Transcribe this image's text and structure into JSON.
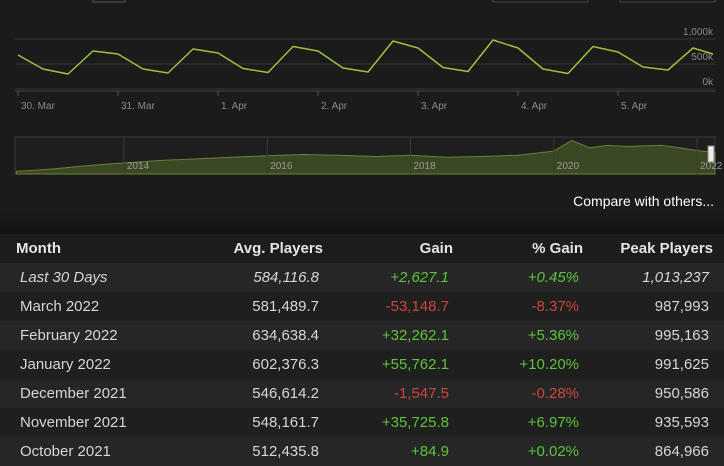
{
  "chart_data": [
    {
      "type": "line",
      "x": [
        0,
        0.25,
        0.5,
        0.75,
        1,
        1.25,
        1.5,
        1.75,
        2,
        2.25,
        2.5,
        2.75,
        3,
        3.25,
        3.5,
        3.75,
        4,
        4.25,
        4.5,
        4.75,
        5,
        5.25,
        5.5,
        5.75,
        6,
        6.25,
        6.5,
        6.75,
        6.95
      ],
      "values": [
        680000,
        400000,
        300000,
        760000,
        700000,
        400000,
        320000,
        800000,
        720000,
        410000,
        330000,
        850000,
        760000,
        420000,
        340000,
        960000,
        820000,
        430000,
        350000,
        980000,
        820000,
        400000,
        310000,
        850000,
        740000,
        440000,
        380000,
        820000,
        700000
      ],
      "color": "#9cc23c",
      "xlim": [
        -0.03,
        6.97
      ],
      "xticks": [
        {
          "value": 0,
          "label": "30. Mar"
        },
        {
          "value": 1,
          "label": "31. Mar"
        },
        {
          "value": 2,
          "label": "1. Apr"
        },
        {
          "value": 3,
          "label": "2. Apr"
        },
        {
          "value": 4,
          "label": "3. Apr"
        },
        {
          "value": 5,
          "label": "4. Apr"
        },
        {
          "value": 6,
          "label": "5. Apr"
        }
      ],
      "ylim": [
        -40000,
        1500000
      ],
      "yticks": [
        {
          "value": 0,
          "label": "0k"
        },
        {
          "value": 500000,
          "label": "500k"
        },
        {
          "value": 1000000,
          "label": "1,000k"
        }
      ],
      "grid": true
    },
    {
      "type": "area",
      "x": [
        2012.5,
        2013,
        2013.5,
        2014,
        2014.5,
        2015,
        2015.5,
        2016,
        2016.5,
        2017,
        2017.5,
        2018,
        2018.5,
        2019,
        2019.5,
        2020,
        2020.25,
        2020.5,
        2020.75,
        2021,
        2021.5,
        2021.75,
        2022,
        2022.25
      ],
      "values": [
        80000,
        150000,
        250000,
        330000,
        400000,
        450000,
        500000,
        540000,
        580000,
        560000,
        520000,
        560000,
        500000,
        520000,
        560000,
        680000,
        1000000,
        780000,
        850000,
        820000,
        850000,
        780000,
        700000,
        640000
      ],
      "color": "#3b4824",
      "xlim": [
        2012.48,
        2022.25
      ],
      "xticks": [
        2014,
        2016,
        2018,
        2020,
        2022
      ],
      "ylim": [
        0,
        1100000
      ]
    }
  ],
  "compare_link": "Compare with others...",
  "table": {
    "columns": [
      "Month",
      "Avg. Players",
      "Gain",
      "% Gain",
      "Peak Players"
    ],
    "rows": [
      [
        "Last 30 Days",
        "584,116.8",
        "+2,627.1",
        "+0.45%",
        "1,013,237"
      ],
      [
        "March 2022",
        "581,489.7",
        "-53,148.7",
        "-8.37%",
        "987,993"
      ],
      [
        "February 2022",
        "634,638.4",
        "+32,262.1",
        "+5.36%",
        "995,163"
      ],
      [
        "January 2022",
        "602,376.3",
        "+55,762.1",
        "+10.20%",
        "991,625"
      ],
      [
        "December 2021",
        "546,614.2",
        "-1,547.5",
        "-0.28%",
        "950,586"
      ],
      [
        "November 2021",
        "548,161.7",
        "+35,725.8",
        "+6.97%",
        "935,593"
      ],
      [
        "October 2021",
        "512,435.8",
        "+84.9",
        "+0.02%",
        "864,966"
      ]
    ]
  }
}
